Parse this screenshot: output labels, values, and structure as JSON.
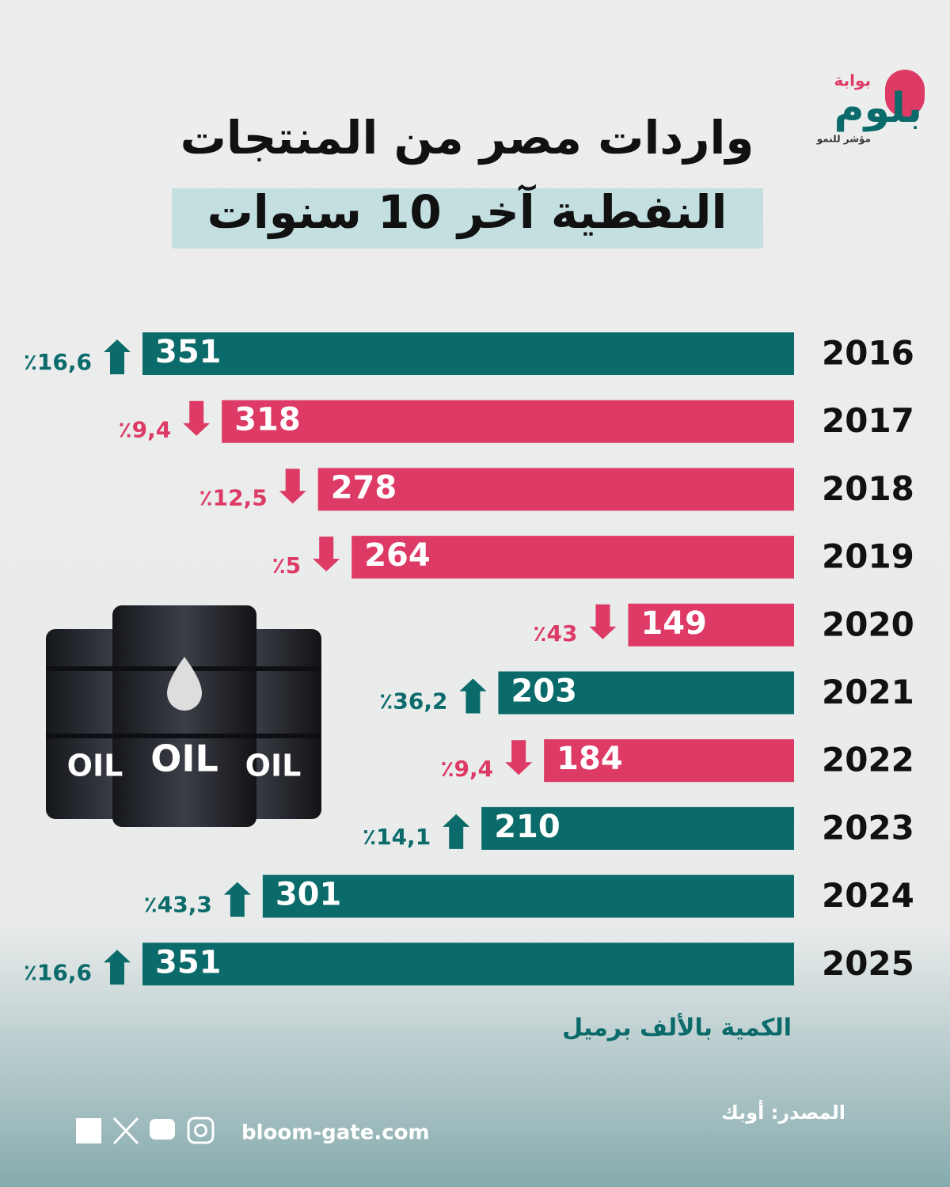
{
  "chart_data": {
    "type": "bar",
    "title": "واردات مصر من المنتجات",
    "subtitle": "النفطية آخر 10 سنوات",
    "brand": {
      "top": "بوابة",
      "name": "بلوم",
      "tagline": "مؤشر للنمو"
    },
    "categories": [
      "2016",
      "2017",
      "2018",
      "2019",
      "2020",
      "2021",
      "2022",
      "2023",
      "2024",
      "2025"
    ],
    "values": [
      351,
      318,
      278,
      264,
      149,
      203,
      184,
      210,
      301,
      351
    ],
    "xlim": [
      80,
      351
    ],
    "changes": {
      "values": [
        16.6,
        9.4,
        12.5,
        5,
        43,
        36.2,
        9.4,
        14.1,
        43.3,
        16.6
      ],
      "value_labels": [
        "٪16,6",
        "٪9,4",
        "٪12,5",
        "٪5",
        "٪43",
        "٪36,2",
        "٪9,4",
        "٪14,1",
        "٪43,3",
        "٪16,6"
      ],
      "directions": [
        "up",
        "down",
        "down",
        "down",
        "down",
        "up",
        "down",
        "up",
        "up",
        "up"
      ]
    },
    "colors": {
      "up": "#0b6a6a",
      "down": "#dd3a65"
    },
    "unit_note": "الكمية بالألف برميل",
    "source": "المصدر: أوبك",
    "website": "bloom-gate.com",
    "illustration_text": "OIL"
  }
}
